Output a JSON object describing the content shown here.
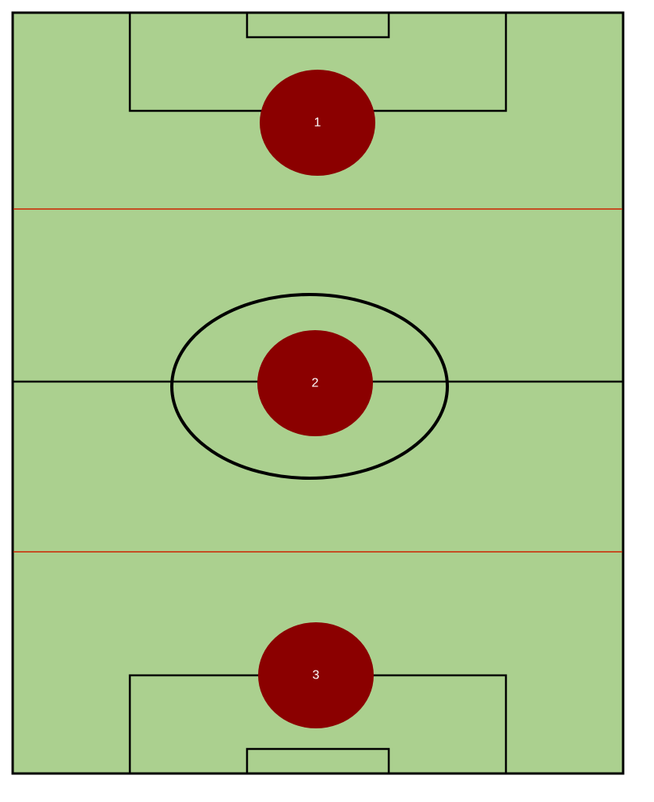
{
  "colors": {
    "pitch": "#abd08f",
    "line": "#000000",
    "zone_divider": "#cc2200",
    "marker": "#8b0000",
    "marker_text": "#ffffff"
  },
  "zones": [
    {
      "label": "1"
    },
    {
      "label": "2"
    },
    {
      "label": "3"
    }
  ]
}
